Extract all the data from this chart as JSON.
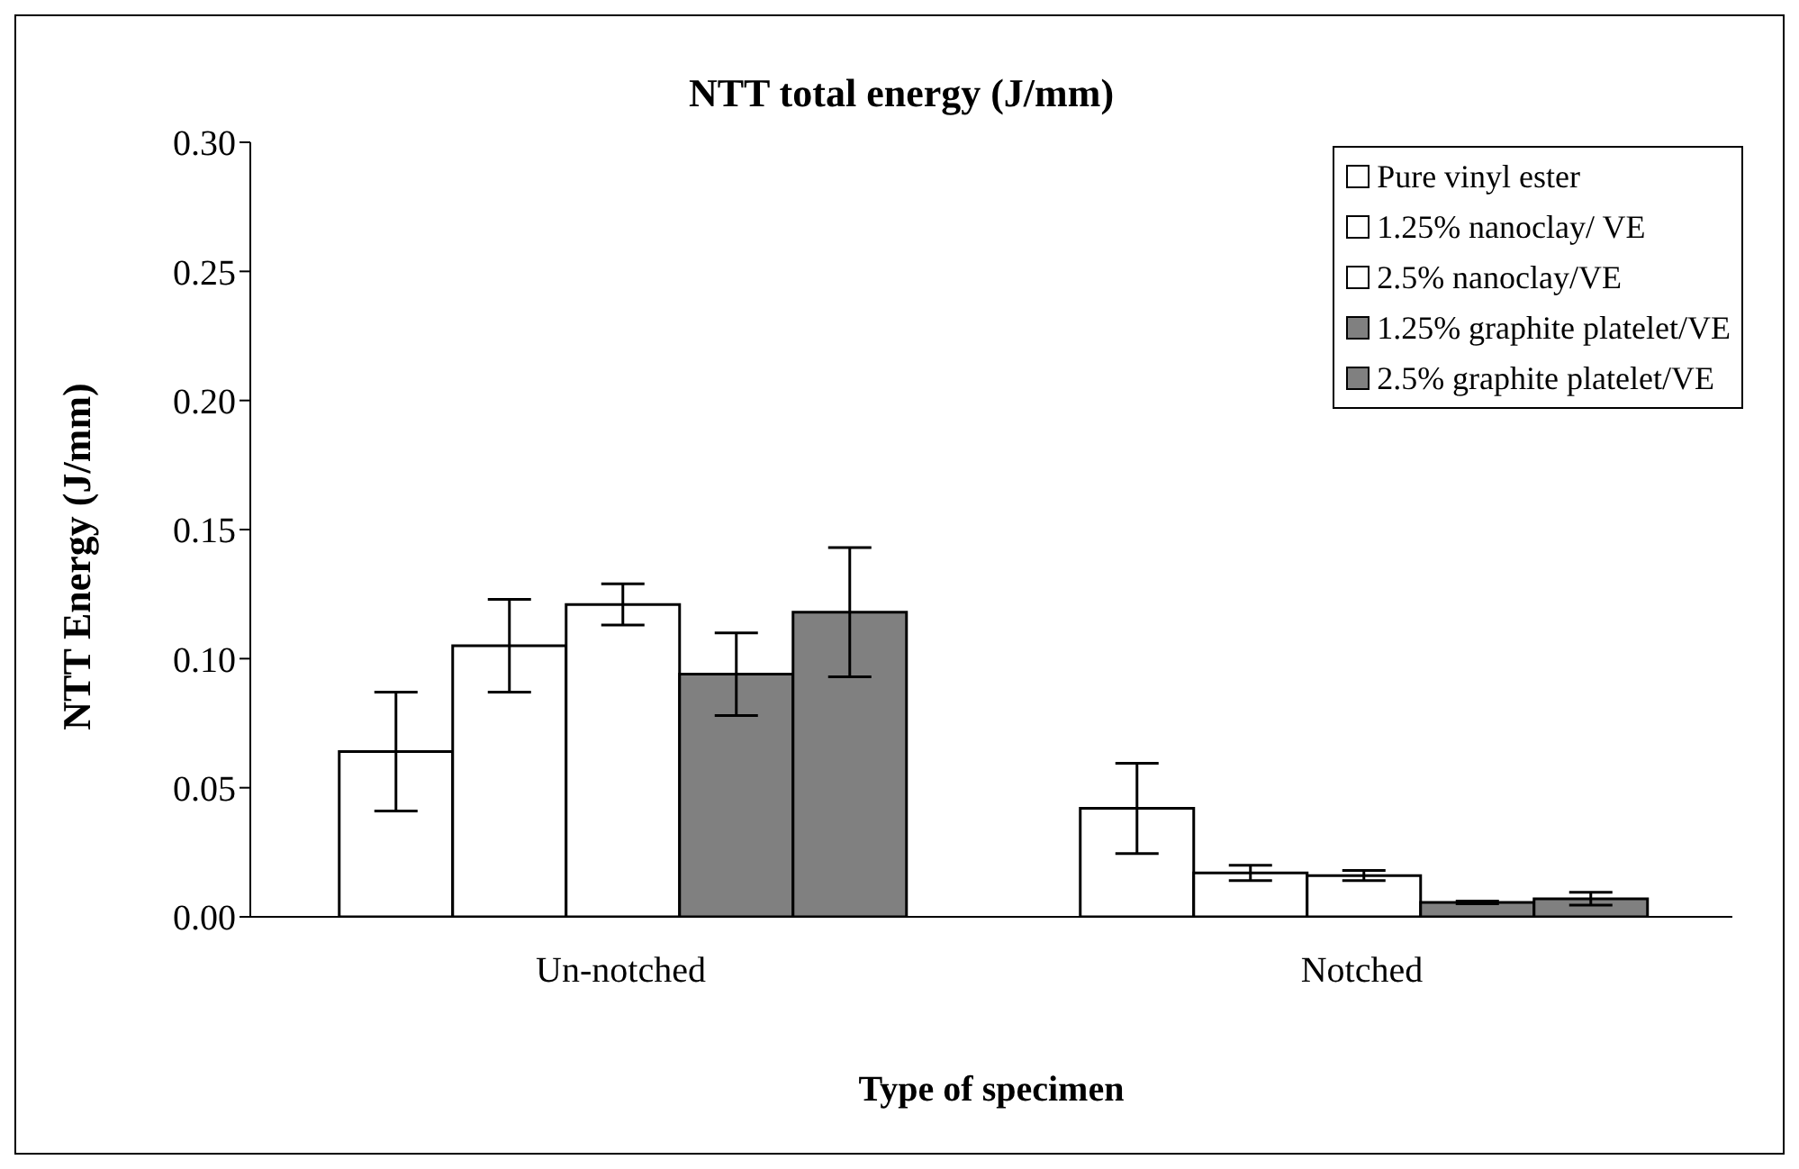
{
  "chart_data": {
    "type": "bar",
    "title": "NTT total energy (J/mm)",
    "xlabel": "Type of specimen",
    "ylabel": "NTT Energy (J/mm)",
    "categories": [
      "Un-notched",
      "Notched"
    ],
    "series": [
      {
        "name": "Pure vinyl ester",
        "color": "#ffffff",
        "values": [
          0.064,
          0.042
        ],
        "errors": [
          0.023,
          0.0175
        ]
      },
      {
        "name": "1.25% nanoclay/ VE",
        "color": "#ffffff",
        "values": [
          0.105,
          0.017
        ],
        "errors": [
          0.018,
          0.003
        ]
      },
      {
        "name": "2.5% nanoclay/VE",
        "color": "#ffffff",
        "values": [
          0.121,
          0.016
        ],
        "errors": [
          0.008,
          0.002
        ]
      },
      {
        "name": "1.25% graphite platelet/VE",
        "color": "#808080",
        "values": [
          0.094,
          0.0056
        ],
        "errors": [
          0.016,
          0.0005
        ]
      },
      {
        "name": "2.5% graphite platelet/VE",
        "color": "#808080",
        "values": [
          0.118,
          0.007
        ],
        "errors": [
          0.025,
          0.0025
        ]
      }
    ],
    "ylim": [
      0,
      0.3
    ],
    "yticks": [
      {
        "value": 0,
        "label": "0.00"
      },
      {
        "value": 0.05,
        "label": "0.05"
      },
      {
        "value": 0.1,
        "label": "0.10"
      },
      {
        "value": 0.15,
        "label": "0.15"
      },
      {
        "value": 0.2,
        "label": "0.20"
      },
      {
        "value": 0.25,
        "label": "0.25"
      },
      {
        "value": 0.3,
        "label": "0.30"
      }
    ],
    "grid": false,
    "legend": "top right"
  }
}
